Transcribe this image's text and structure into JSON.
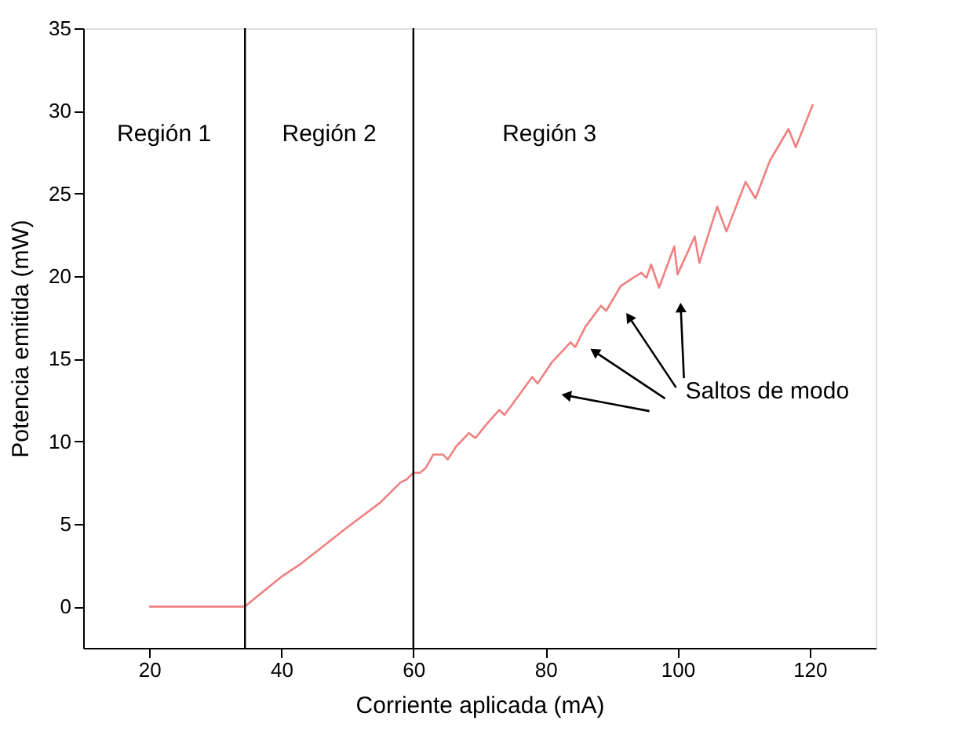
{
  "chart_data": {
    "type": "line",
    "xlabel": "Corriente aplicada (mA)",
    "ylabel": "Potencia emitida (mW)",
    "xlim": [
      10,
      130
    ],
    "xticks": [
      20,
      40,
      60,
      80,
      100,
      120
    ],
    "ylim": [
      -2.5,
      35
    ],
    "yticks": [
      0,
      5,
      10,
      15,
      20,
      25,
      30,
      35
    ],
    "grid": false,
    "line_style": "solid",
    "marker": "none",
    "series": [
      {
        "color": "#f08080",
        "x": [
          20,
          34.5,
          36,
          40,
          43,
          50,
          55,
          58,
          59,
          60,
          61,
          61.9,
          63,
          64.5,
          65.2,
          66.5,
          68.4,
          69.4,
          71,
          73,
          73.8,
          76,
          78,
          78.8,
          81,
          83.8,
          84.5,
          86,
          88.4,
          89.2,
          91.4,
          93.3,
          94.5,
          95.3,
          96,
          97.2,
          99.5,
          100,
          102.6,
          103.3,
          106,
          107.4,
          110.3,
          111.8,
          114,
          116.8,
          117.9,
          120.5
        ],
        "values": [
          0,
          0,
          0.5,
          1.8,
          2.6,
          4.8,
          6.3,
          7.5,
          7.7,
          8.1,
          8.1,
          8.4,
          9.2,
          9.2,
          8.9,
          9.7,
          10.5,
          10.2,
          11,
          11.9,
          11.6,
          12.8,
          13.9,
          13.5,
          14.8,
          16.0,
          15.7,
          16.9,
          18.2,
          17.9,
          19.4,
          19.9,
          20.2,
          19.9,
          20.7,
          19.3,
          21.8,
          20.1,
          22.4,
          20.8,
          24.2,
          22.7,
          25.7,
          24.7,
          27,
          28.9,
          27.8,
          30.4
        ]
      }
    ],
    "ref_lines": [
      {
        "axis": "x",
        "value": 34.5,
        "color": "#000000"
      },
      {
        "axis": "x",
        "value": 60,
        "color": "#000000"
      }
    ],
    "annotations": [
      "Región 1",
      "Región 2",
      "Región 3",
      "Saltos de modo"
    ]
  }
}
